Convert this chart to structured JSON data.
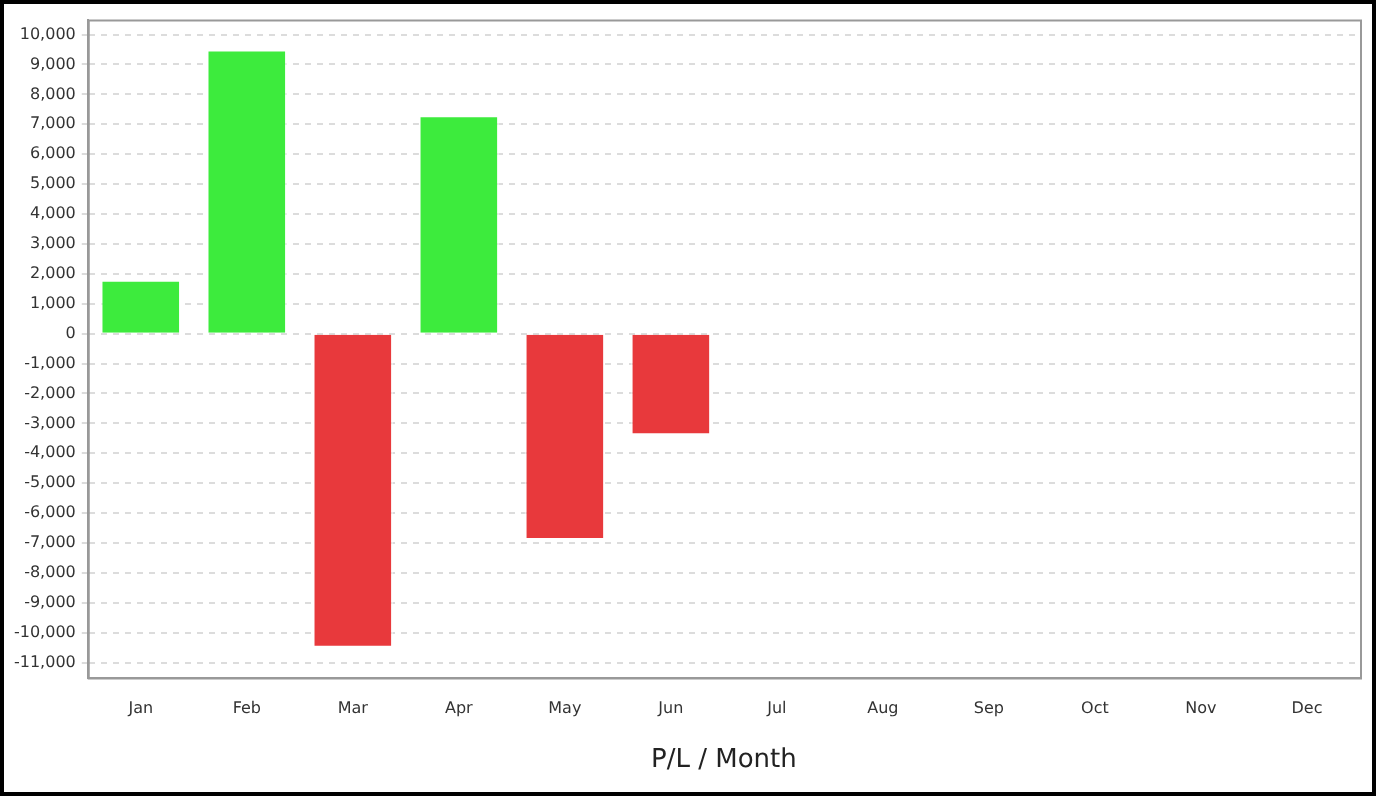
{
  "chart_data": {
    "type": "bar",
    "xlabel": "P/L / Month",
    "categories": [
      "Jan",
      "Feb",
      "Mar",
      "Apr",
      "May",
      "Jun",
      "Jul",
      "Aug",
      "Sep",
      "Oct",
      "Nov",
      "Dec"
    ],
    "values": [
      1800,
      9500,
      -10500,
      7300,
      -6900,
      -3400,
      null,
      null,
      null,
      null,
      null,
      null
    ],
    "colors": [
      "#3deb3d",
      "#3deb3d",
      "#e8393c",
      "#3deb3d",
      "#e8393c",
      "#e8393c",
      null,
      null,
      null,
      null,
      null,
      null
    ],
    "ylim": [
      -11500,
      10500
    ],
    "yticks": [
      {
        "value": -11000,
        "label": "-11,000"
      },
      {
        "value": -10000,
        "label": "-10,000"
      },
      {
        "value": -9000,
        "label": "-9,000"
      },
      {
        "value": -8000,
        "label": "-8,000"
      },
      {
        "value": -7000,
        "label": "-7,000"
      },
      {
        "value": -6000,
        "label": "-6,000"
      },
      {
        "value": -5000,
        "label": "-5,000"
      },
      {
        "value": -4000,
        "label": "-4,000"
      },
      {
        "value": -3000,
        "label": "-3,000"
      },
      {
        "value": -2000,
        "label": "-2,000"
      },
      {
        "value": -1000,
        "label": "-1,000"
      },
      0,
      {
        "value": 1000,
        "label": "1,000"
      },
      {
        "value": 2000,
        "label": "2,000"
      },
      {
        "value": 3000,
        "label": "3,000"
      },
      {
        "value": 4000,
        "label": "4,000"
      },
      {
        "value": 5000,
        "label": "5,000"
      },
      {
        "value": 6000,
        "label": "6,000"
      },
      {
        "value": 7000,
        "label": "7,000"
      },
      {
        "value": 8000,
        "label": "8,000"
      },
      {
        "value": 9000,
        "label": "9,000"
      },
      {
        "value": 10000,
        "label": "10,000"
      }
    ],
    "grid": "y",
    "legend": false
  }
}
